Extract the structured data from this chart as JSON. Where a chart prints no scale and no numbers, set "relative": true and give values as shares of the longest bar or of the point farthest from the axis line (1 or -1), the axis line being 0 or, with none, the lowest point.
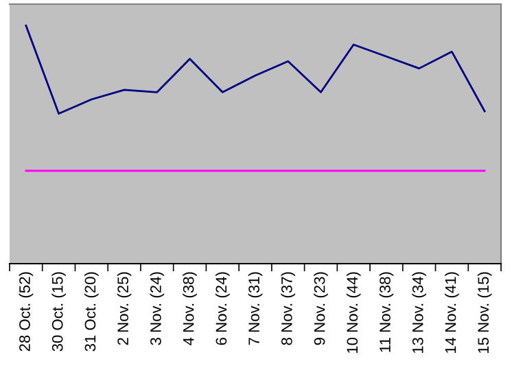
{
  "chart_data": {
    "type": "line",
    "relative": true,
    "categories": [
      "28 Oct. (52)",
      "30 Oct. (15)",
      "31 Oct. (20)",
      "2 Nov. (25)",
      "3 Nov. (24)",
      "4 Nov. (38)",
      "6 Nov. (24)",
      "7 Nov. (31)",
      "8 Nov. (37)",
      "9 Nov. (23)",
      "10 Nov. (44)",
      "11 Nov. (38)",
      "13 Nov. (34)",
      "14 Nov. (41)",
      "15 Nov. (15)"
    ],
    "series": [
      {
        "color": "#000080",
        "values": [
          1,
          0.63,
          0.69,
          0.73,
          0.72,
          0.86,
          0.72,
          0.79,
          0.85,
          0.72,
          0.92,
          0.87,
          0.82,
          0.89,
          0.64
        ]
      }
    ],
    "ref_lines": [
      {
        "axis": "y",
        "value": 0.39,
        "color": "#ff00ff",
        "line_style": "solid"
      }
    ],
    "grid": false,
    "legend": false,
    "marker": "none",
    "line_style": "solid"
  }
}
